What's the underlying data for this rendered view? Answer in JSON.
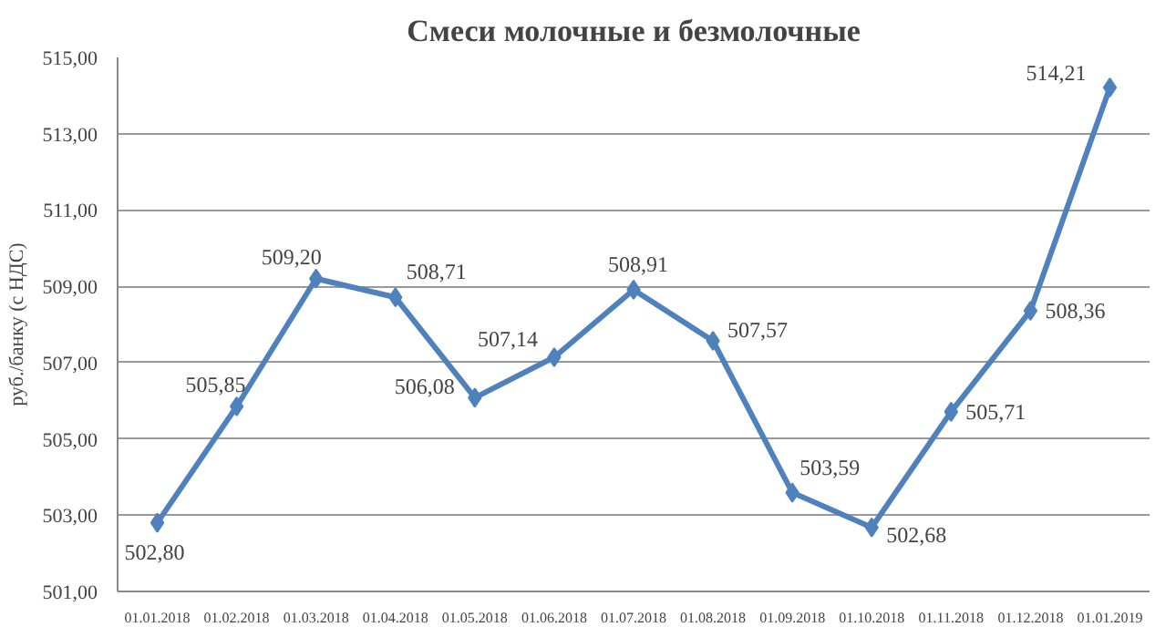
{
  "chart_data": {
    "type": "line",
    "title": "Смеси молочные и безмолочные",
    "ylabel": "руб./банку (с НДС)",
    "categories": [
      "01.01.2018",
      "01.02.2018",
      "01.03.2018",
      "01.04.2018",
      "01.05.2018",
      "01.06.2018",
      "01.07.2018",
      "01.08.2018",
      "01.09.2018",
      "01.10.2018",
      "01.11.2018",
      "01.12.2018",
      "01.01.2019"
    ],
    "series": [
      {
        "color": "#4f81bd",
        "values": [
          502.8,
          505.85,
          509.2,
          508.71,
          506.08,
          507.14,
          508.91,
          507.57,
          503.59,
          502.68,
          505.71,
          508.36,
          514.21
        ]
      }
    ],
    "value_labels": [
      "502,80",
      "505,85",
      "509,20",
      "508,71",
      "506,08",
      "507,14",
      "508,91",
      "507,57",
      "503,59",
      "502,68",
      "505,71",
      "508,36",
      "514,21"
    ],
    "ylim": [
      501,
      515
    ],
    "yticks": [
      {
        "value": 501,
        "label": "501,00"
      },
      {
        "value": 503,
        "label": "503,00"
      },
      {
        "value": 505,
        "label": "505,00"
      },
      {
        "value": 507,
        "label": "507,00"
      },
      {
        "value": 509,
        "label": "509,00"
      },
      {
        "value": 511,
        "label": "511,00"
      },
      {
        "value": 513,
        "label": "513,00"
      },
      {
        "value": 515,
        "label": "515,00"
      }
    ],
    "grid": "y",
    "marker": "diamond",
    "line_style": "solid"
  }
}
